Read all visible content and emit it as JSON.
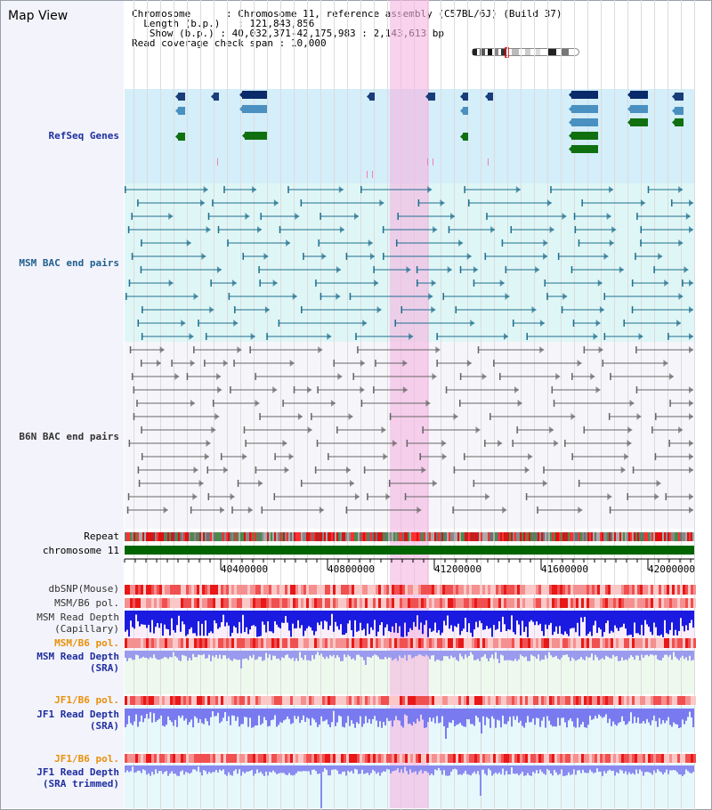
{
  "app": {
    "title": "Map View"
  },
  "info": {
    "chromosome_key": "Chromosome",
    "chromosome_value": "Chromosome 11, reference assembly (C57BL/6J) (Build 37)",
    "length_key": "Length (b.p.)",
    "length_value": "121,843,856",
    "show_key": "Show (b.p.)",
    "show_value": "40,032,371-42,175,983 : 2,143,613 bp",
    "coverage_key": "Read coverage check span",
    "coverage_value": "10,000"
  },
  "tracks": {
    "refseq": "RefSeq Genes",
    "msm_bac": "MSM BAC end pairs",
    "b6n_bac": "B6N BAC end pairs",
    "repeat": "Repeat",
    "chromosome": "chromosome 11",
    "dbsnp": "dbSNP(Mouse)",
    "msm_b6_pol_1": "MSM/B6 pol.",
    "msm_read_depth_cap_1": "MSM Read Depth",
    "msm_read_depth_cap_2": "(Capillary)",
    "msm_b6_pol_2": "MSM/B6 pol.",
    "msm_read_depth_sra_1": "MSM Read Depth",
    "msm_read_depth_sra_2": "(SRA)",
    "jf1_b6_pol_1": "JF1/B6 pol.",
    "jf1_read_depth_sra_1": "JF1 Read Depth",
    "jf1_read_depth_sra_2": "(SRA)",
    "jf1_b6_pol_2": "JF1/B6 pol.",
    "jf1_read_depth_trim_1": "JF1 Read Depth",
    "jf1_read_depth_trim_2": "(SRA trimmed)"
  },
  "axis": {
    "ticks": [
      "40400000",
      "40800000",
      "41200000",
      "41600000",
      "42000000"
    ]
  },
  "colors": {
    "highlight": "#f5b4e1",
    "refseq_bg": "#d4eefa",
    "msm_bg": "#dff6f6",
    "dark_green": "#006400",
    "depth_blue": "#1010e0",
    "pol_red": "#f03030"
  }
}
